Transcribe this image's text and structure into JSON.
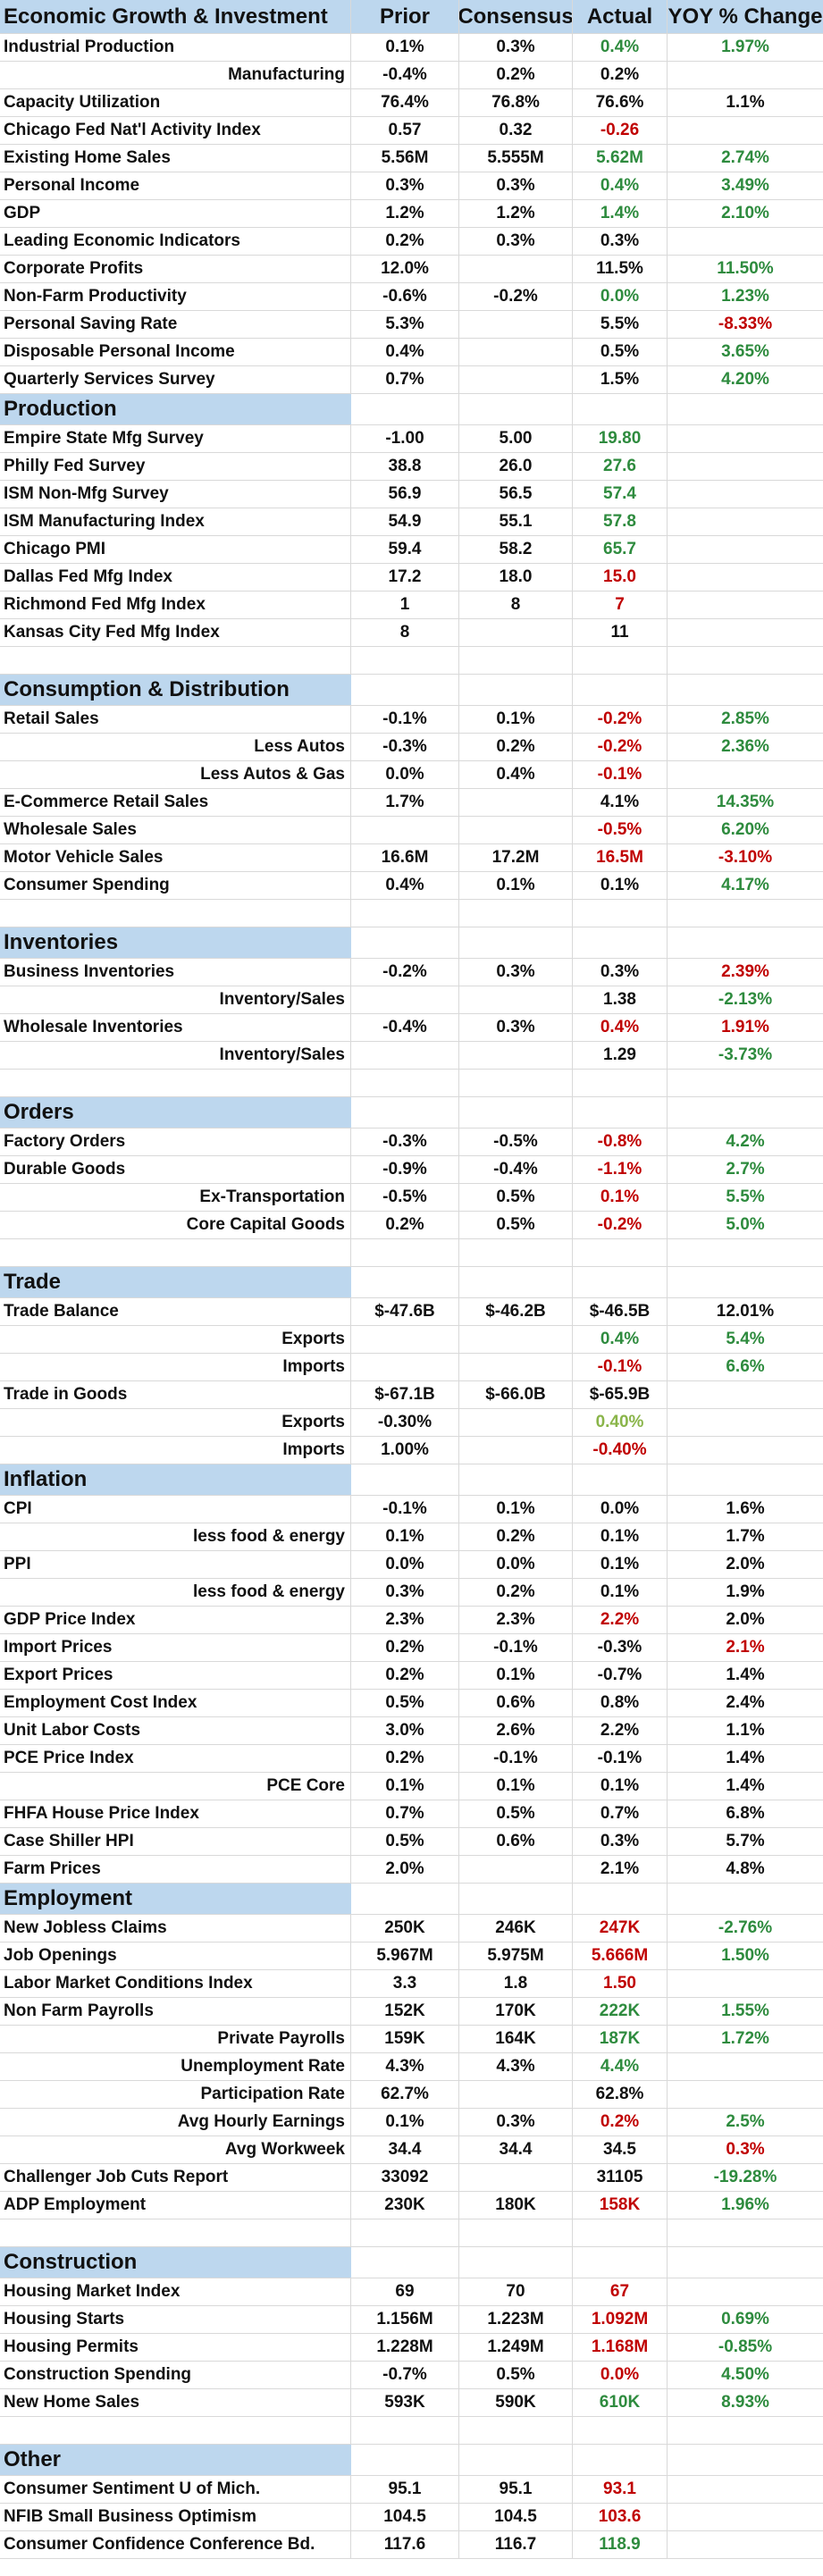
{
  "header": {
    "label": "Economic Growth & Investment",
    "prior": "Prior",
    "consensus": "Consensus",
    "actual": "Actual",
    "yoy": "YOY % Change"
  },
  "rows": [
    {
      "t": "d",
      "h": 31,
      "label": "Industrial Production",
      "prior": "0.1%",
      "consensus": "0.3%",
      "actual": "0.4%",
      "ac": "green",
      "yoy": "1.97%",
      "yc": "green"
    },
    {
      "t": "d",
      "h": 31,
      "label": "Manufacturing",
      "indent": true,
      "prior": "-0.4%",
      "consensus": "0.2%",
      "actual": "0.2%",
      "ac": "black",
      "yoy": "",
      "yc": "black"
    },
    {
      "t": "d",
      "h": 31,
      "label": "Capacity Utilization",
      "prior": "76.4%",
      "consensus": "76.8%",
      "actual": "76.6%",
      "ac": "black",
      "yoy": "1.1%",
      "yc": "black"
    },
    {
      "t": "d",
      "h": 31,
      "label": "Chicago Fed Nat'l Activity Index",
      "prior": "0.57",
      "consensus": "0.32",
      "actual": "-0.26",
      "ac": "red",
      "yoy": "",
      "yc": "black"
    },
    {
      "t": "d",
      "h": 31,
      "label": "Existing Home Sales",
      "prior": "5.56M",
      "consensus": "5.555M",
      "actual": "5.62M",
      "ac": "green",
      "yoy": "2.74%",
      "yc": "green"
    },
    {
      "t": "d",
      "h": 31,
      "label": "Personal Income",
      "prior": "0.3%",
      "consensus": "0.3%",
      "actual": "0.4%",
      "ac": "green",
      "yoy": "3.49%",
      "yc": "green"
    },
    {
      "t": "d",
      "h": 31,
      "label": "GDP",
      "prior": "1.2%",
      "consensus": "1.2%",
      "actual": "1.4%",
      "ac": "green",
      "yoy": "2.10%",
      "yc": "green"
    },
    {
      "t": "d",
      "h": 31,
      "label": "Leading Economic Indicators",
      "prior": "0.2%",
      "consensus": "0.3%",
      "actual": "0.3%",
      "ac": "black",
      "yoy": "",
      "yc": "black"
    },
    {
      "t": "d",
      "h": 31,
      "label": "Corporate Profits",
      "prior": "12.0%",
      "consensus": "",
      "actual": "11.5%",
      "ac": "black",
      "yoy": "11.50%",
      "yc": "green"
    },
    {
      "t": "d",
      "h": 31,
      "label": "Non-Farm Productivity",
      "prior": "-0.6%",
      "consensus": "-0.2%",
      "actual": "0.0%",
      "ac": "green",
      "yoy": "1.23%",
      "yc": "green"
    },
    {
      "t": "d",
      "h": 31,
      "label": "Personal Saving Rate",
      "prior": "5.3%",
      "consensus": "",
      "actual": "5.5%",
      "ac": "black",
      "yoy": "-8.33%",
      "yc": "red"
    },
    {
      "t": "d",
      "h": 31,
      "label": "Disposable Personal Income",
      "prior": "0.4%",
      "consensus": "",
      "actual": "0.5%",
      "ac": "black",
      "yoy": "3.65%",
      "yc": "green"
    },
    {
      "t": "d",
      "h": 31,
      "label": "Quarterly Services Survey",
      "prior": "0.7%",
      "consensus": "",
      "actual": "1.5%",
      "ac": "black",
      "yoy": "4.20%",
      "yc": "green"
    },
    {
      "t": "s",
      "h": 35,
      "label": "Production"
    },
    {
      "t": "d",
      "h": 31,
      "label": "Empire State Mfg Survey",
      "prior": "-1.00",
      "consensus": "5.00",
      "actual": "19.80",
      "ac": "green",
      "yoy": "",
      "yc": "black"
    },
    {
      "t": "d",
      "h": 31,
      "label": "Philly Fed Survey",
      "prior": "38.8",
      "consensus": "26.0",
      "actual": "27.6",
      "ac": "green",
      "yoy": "",
      "yc": "black"
    },
    {
      "t": "d",
      "h": 31,
      "label": "ISM Non-Mfg Survey",
      "prior": "56.9",
      "consensus": "56.5",
      "actual": "57.4",
      "ac": "green",
      "yoy": "",
      "yc": "black"
    },
    {
      "t": "d",
      "h": 31,
      "label": "ISM Manufacturing Index",
      "prior": "54.9",
      "consensus": "55.1",
      "actual": "57.8",
      "ac": "green",
      "yoy": "",
      "yc": "black"
    },
    {
      "t": "d",
      "h": 31,
      "label": "Chicago PMI",
      "prior": "59.4",
      "consensus": "58.2",
      "actual": "65.7",
      "ac": "green",
      "yoy": "",
      "yc": "black"
    },
    {
      "t": "d",
      "h": 31,
      "label": "Dallas Fed Mfg Index",
      "prior": "17.2",
      "consensus": "18.0",
      "actual": "15.0",
      "ac": "red",
      "yoy": "",
      "yc": "black"
    },
    {
      "t": "d",
      "h": 31,
      "label": "Richmond Fed Mfg Index",
      "prior": "1",
      "consensus": "8",
      "actual": "7",
      "ac": "red",
      "yoy": "",
      "yc": "black"
    },
    {
      "t": "d",
      "h": 31,
      "label": "Kansas City Fed Mfg Index",
      "prior": "8",
      "consensus": "",
      "actual": "11",
      "ac": "black",
      "yoy": "",
      "yc": "black"
    },
    {
      "t": "b",
      "h": 31
    },
    {
      "t": "s",
      "h": 35,
      "label": "Consumption & Distribution"
    },
    {
      "t": "d",
      "h": 31,
      "label": "Retail Sales",
      "prior": "-0.1%",
      "consensus": "0.1%",
      "actual": "-0.2%",
      "ac": "red",
      "yoy": "2.85%",
      "yc": "green"
    },
    {
      "t": "d",
      "h": 31,
      "label": "Less Autos",
      "indent": true,
      "prior": "-0.3%",
      "consensus": "0.2%",
      "actual": "-0.2%",
      "ac": "red",
      "yoy": "2.36%",
      "yc": "green"
    },
    {
      "t": "d",
      "h": 31,
      "label": "Less Autos & Gas",
      "indent": true,
      "prior": "0.0%",
      "consensus": "0.4%",
      "actual": "-0.1%",
      "ac": "red",
      "yoy": "",
      "yc": "black"
    },
    {
      "t": "d",
      "h": 31,
      "label": "E-Commerce Retail Sales",
      "prior": "1.7%",
      "consensus": "",
      "actual": "4.1%",
      "ac": "black",
      "yoy": "14.35%",
      "yc": "green"
    },
    {
      "t": "d",
      "h": 31,
      "label": "Wholesale Sales",
      "prior": "",
      "consensus": "",
      "actual": "-0.5%",
      "ac": "red",
      "yoy": "6.20%",
      "yc": "green"
    },
    {
      "t": "d",
      "h": 31,
      "label": "Motor Vehicle Sales",
      "prior": "16.6M",
      "consensus": "17.2M",
      "actual": "16.5M",
      "ac": "red",
      "yoy": "-3.10%",
      "yc": "red"
    },
    {
      "t": "d",
      "h": 31,
      "label": "Consumer Spending",
      "prior": "0.4%",
      "consensus": "0.1%",
      "actual": "0.1%",
      "ac": "black",
      "yoy": "4.17%",
      "yc": "green"
    },
    {
      "t": "b",
      "h": 31
    },
    {
      "t": "s",
      "h": 35,
      "label": "Inventories"
    },
    {
      "t": "d",
      "h": 31,
      "label": "Business Inventories",
      "prior": "-0.2%",
      "consensus": "0.3%",
      "actual": "0.3%",
      "ac": "black",
      "yoy": "2.39%",
      "yc": "red"
    },
    {
      "t": "d",
      "h": 31,
      "label": "Inventory/Sales",
      "indent": true,
      "prior": "",
      "consensus": "",
      "actual": "1.38",
      "ac": "black",
      "yoy": "-2.13%",
      "yc": "green"
    },
    {
      "t": "d",
      "h": 31,
      "label": "Wholesale Inventories",
      "prior": "-0.4%",
      "consensus": "0.3%",
      "actual": "0.4%",
      "ac": "red",
      "yoy": "1.91%",
      "yc": "red"
    },
    {
      "t": "d",
      "h": 31,
      "label": "Inventory/Sales",
      "indent": true,
      "prior": "",
      "consensus": "",
      "actual": "1.29",
      "ac": "black",
      "yoy": "-3.73%",
      "yc": "green"
    },
    {
      "t": "b",
      "h": 31
    },
    {
      "t": "s",
      "h": 35,
      "label": "Orders"
    },
    {
      "t": "d",
      "h": 31,
      "label": "Factory Orders",
      "prior": "-0.3%",
      "consensus": "-0.5%",
      "actual": "-0.8%",
      "ac": "red",
      "yoy": "4.2%",
      "yc": "green"
    },
    {
      "t": "d",
      "h": 31,
      "label": "Durable Goods",
      "prior": "-0.9%",
      "consensus": "-0.4%",
      "actual": "-1.1%",
      "ac": "red",
      "yoy": "2.7%",
      "yc": "green"
    },
    {
      "t": "d",
      "h": 31,
      "label": "Ex-Transportation",
      "indent": true,
      "prior": "-0.5%",
      "consensus": "0.5%",
      "actual": "0.1%",
      "ac": "red",
      "yoy": "5.5%",
      "yc": "green"
    },
    {
      "t": "d",
      "h": 31,
      "label": "Core Capital Goods",
      "indent": true,
      "prior": "0.2%",
      "consensus": "0.5%",
      "actual": "-0.2%",
      "ac": "red",
      "yoy": "5.0%",
      "yc": "green"
    },
    {
      "t": "b",
      "h": 31
    },
    {
      "t": "s",
      "h": 35,
      "label": "Trade"
    },
    {
      "t": "d",
      "h": 31,
      "label": "Trade Balance",
      "prior": "$-47.6B",
      "consensus": "$-46.2B",
      "actual": "$-46.5B",
      "ac": "black",
      "yoy": "12.01%",
      "yc": "black"
    },
    {
      "t": "d",
      "h": 31,
      "label": "Exports",
      "indent": true,
      "prior": "",
      "consensus": "",
      "actual": "0.4%",
      "ac": "green",
      "yoy": "5.4%",
      "yc": "green"
    },
    {
      "t": "d",
      "h": 31,
      "label": "Imports",
      "indent": true,
      "prior": "",
      "consensus": "",
      "actual": "-0.1%",
      "ac": "red",
      "yoy": "6.6%",
      "yc": "green"
    },
    {
      "t": "d",
      "h": 31,
      "label": "Trade in Goods",
      "prior": "$-67.1B",
      "consensus": "$-66.0B",
      "actual": "$-65.9B",
      "ac": "black",
      "yoy": "",
      "yc": "black"
    },
    {
      "t": "d",
      "h": 31,
      "label": "Exports",
      "indent": true,
      "prior": "-0.30%",
      "consensus": "",
      "actual": "0.40%",
      "ac": "lime",
      "yoy": "",
      "yc": "black"
    },
    {
      "t": "d",
      "h": 31,
      "label": "Imports",
      "indent": true,
      "prior": "1.00%",
      "consensus": "",
      "actual": "-0.40%",
      "ac": "red",
      "yoy": "",
      "yc": "black"
    },
    {
      "t": "s",
      "h": 35,
      "label": "Inflation"
    },
    {
      "t": "d",
      "h": 31,
      "label": "CPI",
      "prior": "-0.1%",
      "consensus": "0.1%",
      "actual": "0.0%",
      "ac": "black",
      "yoy": "1.6%",
      "yc": "black"
    },
    {
      "t": "d",
      "h": 31,
      "label": "less food & energy",
      "indent": true,
      "prior": "0.1%",
      "consensus": "0.2%",
      "actual": "0.1%",
      "ac": "black",
      "yoy": "1.7%",
      "yc": "black"
    },
    {
      "t": "d",
      "h": 31,
      "label": "PPI",
      "prior": "0.0%",
      "consensus": "0.0%",
      "actual": "0.1%",
      "ac": "black",
      "yoy": "2.0%",
      "yc": "black"
    },
    {
      "t": "d",
      "h": 31,
      "label": "less food & energy",
      "indent": true,
      "prior": "0.3%",
      "consensus": "0.2%",
      "actual": "0.1%",
      "ac": "black",
      "yoy": "1.9%",
      "yc": "black"
    },
    {
      "t": "d",
      "h": 31,
      "label": "GDP Price Index",
      "prior": "2.3%",
      "consensus": "2.3%",
      "actual": "2.2%",
      "ac": "red",
      "yoy": "2.0%",
      "yc": "black"
    },
    {
      "t": "d",
      "h": 31,
      "label": "Import Prices",
      "prior": "0.2%",
      "consensus": "-0.1%",
      "actual": "-0.3%",
      "ac": "black",
      "yoy": "2.1%",
      "yc": "red"
    },
    {
      "t": "d",
      "h": 31,
      "label": "Export Prices",
      "prior": "0.2%",
      "consensus": "0.1%",
      "actual": "-0.7%",
      "ac": "black",
      "yoy": "1.4%",
      "yc": "black"
    },
    {
      "t": "d",
      "h": 31,
      "label": "Employment Cost Index",
      "prior": "0.5%",
      "consensus": "0.6%",
      "actual": "0.8%",
      "ac": "black",
      "yoy": "2.4%",
      "yc": "black"
    },
    {
      "t": "d",
      "h": 31,
      "label": "Unit Labor Costs",
      "prior": "3.0%",
      "consensus": "2.6%",
      "actual": "2.2%",
      "ac": "black",
      "yoy": "1.1%",
      "yc": "black"
    },
    {
      "t": "d",
      "h": 31,
      "label": "PCE Price Index",
      "prior": "0.2%",
      "consensus": "-0.1%",
      "actual": "-0.1%",
      "ac": "black",
      "yoy": "1.4%",
      "yc": "black"
    },
    {
      "t": "d",
      "h": 31,
      "label": "PCE Core",
      "indent": true,
      "prior": "0.1%",
      "consensus": "0.1%",
      "actual": "0.1%",
      "ac": "black",
      "yoy": "1.4%",
      "yc": "black"
    },
    {
      "t": "d",
      "h": 31,
      "label": "FHFA House Price Index",
      "prior": "0.7%",
      "consensus": "0.5%",
      "actual": "0.7%",
      "ac": "black",
      "yoy": "6.8%",
      "yc": "black"
    },
    {
      "t": "d",
      "h": 31,
      "label": "Case Shiller HPI",
      "prior": "0.5%",
      "consensus": "0.6%",
      "actual": "0.3%",
      "ac": "black",
      "yoy": "5.7%",
      "yc": "black"
    },
    {
      "t": "d",
      "h": 31,
      "label": "Farm Prices",
      "prior": "2.0%",
      "consensus": "",
      "actual": "2.1%",
      "ac": "black",
      "yoy": "4.8%",
      "yc": "black"
    },
    {
      "t": "s",
      "h": 35,
      "label": "Employment"
    },
    {
      "t": "d",
      "h": 31,
      "label": "New Jobless Claims",
      "prior": "250K",
      "consensus": "246K",
      "actual": "247K",
      "ac": "red",
      "yoy": "-2.76%",
      "yc": "green"
    },
    {
      "t": "d",
      "h": 31,
      "label": "Job Openings",
      "prior": "5.967M",
      "consensus": "5.975M",
      "actual": "5.666M",
      "ac": "red",
      "yoy": "1.50%",
      "yc": "green"
    },
    {
      "t": "d",
      "h": 31,
      "label": "Labor Market Conditions Index",
      "prior": "3.3",
      "consensus": "1.8",
      "actual": "1.50",
      "ac": "red",
      "yoy": "",
      "yc": "black"
    },
    {
      "t": "d",
      "h": 31,
      "label": "Non Farm Payrolls",
      "prior": "152K",
      "consensus": "170K",
      "actual": "222K",
      "ac": "green",
      "yoy": "1.55%",
      "yc": "green"
    },
    {
      "t": "d",
      "h": 31,
      "label": "Private Payrolls",
      "indent": true,
      "prior": "159K",
      "consensus": "164K",
      "actual": "187K",
      "ac": "green",
      "yoy": "1.72%",
      "yc": "green"
    },
    {
      "t": "d",
      "h": 31,
      "label": "Unemployment Rate",
      "indent": true,
      "prior": "4.3%",
      "consensus": "4.3%",
      "actual": "4.4%",
      "ac": "green",
      "yoy": "",
      "yc": "black"
    },
    {
      "t": "d",
      "h": 31,
      "label": "Participation Rate",
      "indent": true,
      "prior": "62.7%",
      "consensus": "",
      "actual": "62.8%",
      "ac": "black",
      "yoy": "",
      "yc": "black"
    },
    {
      "t": "d",
      "h": 31,
      "label": "Avg Hourly Earnings",
      "indent": true,
      "prior": "0.1%",
      "consensus": "0.3%",
      "actual": "0.2%",
      "ac": "red",
      "yoy": "2.5%",
      "yc": "green"
    },
    {
      "t": "d",
      "h": 31,
      "label": "Avg Workweek",
      "indent": true,
      "prior": "34.4",
      "consensus": "34.4",
      "actual": "34.5",
      "ac": "black",
      "yoy": "0.3%",
      "yc": "red"
    },
    {
      "t": "d",
      "h": 31,
      "label": "Challenger Job Cuts Report",
      "prior": "33092",
      "consensus": "",
      "actual": "31105",
      "ac": "black",
      "yoy": "-19.28%",
      "yc": "green"
    },
    {
      "t": "d",
      "h": 31,
      "label": "ADP Employment",
      "prior": "230K",
      "consensus": "180K",
      "actual": "158K",
      "ac": "red",
      "yoy": "1.96%",
      "yc": "green"
    },
    {
      "t": "b",
      "h": 31
    },
    {
      "t": "s",
      "h": 35,
      "label": "Construction"
    },
    {
      "t": "d",
      "h": 31,
      "label": "Housing Market Index",
      "prior": "69",
      "consensus": "70",
      "actual": "67",
      "ac": "red",
      "yoy": "",
      "yc": "black"
    },
    {
      "t": "d",
      "h": 31,
      "label": "Housing Starts",
      "prior": "1.156M",
      "consensus": "1.223M",
      "actual": "1.092M",
      "ac": "red",
      "yoy": "0.69%",
      "yc": "green"
    },
    {
      "t": "d",
      "h": 31,
      "label": "Housing Permits",
      "prior": "1.228M",
      "consensus": "1.249M",
      "actual": "1.168M",
      "ac": "red",
      "yoy": "-0.85%",
      "yc": "green"
    },
    {
      "t": "d",
      "h": 31,
      "label": "Construction Spending",
      "prior": "-0.7%",
      "consensus": "0.5%",
      "actual": "0.0%",
      "ac": "red",
      "yoy": "4.50%",
      "yc": "green"
    },
    {
      "t": "d",
      "h": 31,
      "label": "New Home Sales",
      "prior": "593K",
      "consensus": "590K",
      "actual": "610K",
      "ac": "green",
      "yoy": "8.93%",
      "yc": "green"
    },
    {
      "t": "b",
      "h": 31
    },
    {
      "t": "s",
      "h": 35,
      "label": "Other"
    },
    {
      "t": "d",
      "h": 31,
      "label": "Consumer Sentiment U of Mich.",
      "prior": "95.1",
      "consensus": "95.1",
      "actual": "93.1",
      "ac": "red",
      "yoy": "",
      "yc": "black"
    },
    {
      "t": "d",
      "h": 31,
      "label": "NFIB Small Business Optimism",
      "prior": "104.5",
      "consensus": "104.5",
      "actual": "103.6",
      "ac": "red",
      "yoy": "",
      "yc": "black"
    },
    {
      "t": "d",
      "h": 31,
      "label": "Consumer Confidence Conference Bd.",
      "prior": "117.6",
      "consensus": "116.7",
      "actual": "118.9",
      "ac": "green",
      "yoy": "",
      "yc": "black"
    }
  ]
}
